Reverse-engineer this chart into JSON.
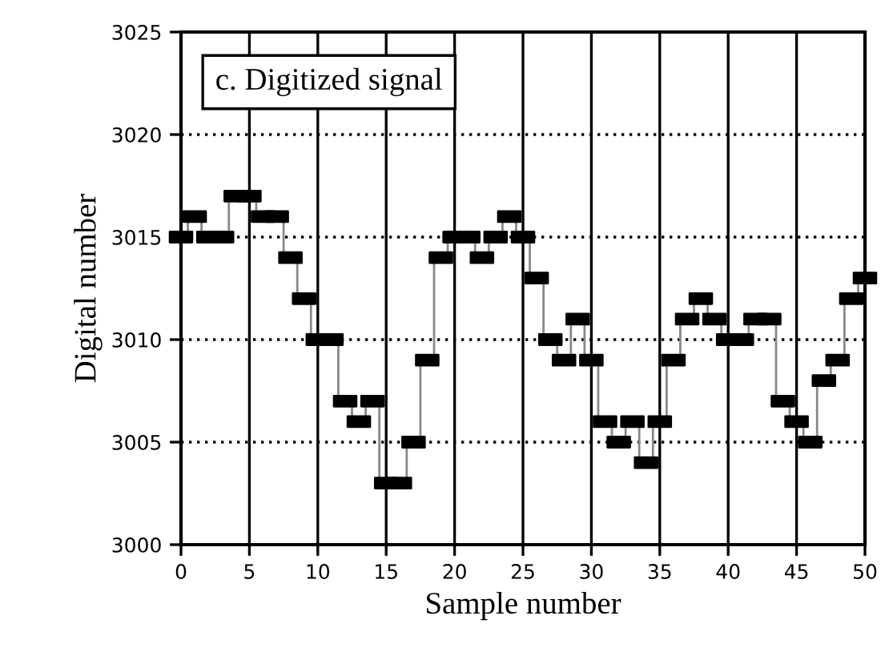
{
  "chart_data": {
    "type": "step",
    "title": "c. Digitized signal",
    "xlabel": "Sample number",
    "ylabel": "Digital number",
    "x": [
      0,
      1,
      2,
      3,
      4,
      5,
      6,
      7,
      8,
      9,
      10,
      11,
      12,
      13,
      14,
      15,
      16,
      17,
      18,
      19,
      20,
      21,
      22,
      23,
      24,
      25,
      26,
      27,
      28,
      29,
      30,
      31,
      32,
      33,
      34,
      35,
      36,
      37,
      38,
      39,
      40,
      41,
      42,
      43,
      44,
      45,
      46,
      47,
      48,
      49,
      50
    ],
    "series": [
      {
        "color": "#000000",
        "values": [
          3015,
          3016,
          3015,
          3015,
          3017,
          3017,
          3016,
          3016,
          3014,
          3012,
          3010,
          3010,
          3007,
          3006,
          3007,
          3003,
          3003,
          3005,
          3009,
          3014,
          3015,
          3015,
          3014,
          3015,
          3016,
          3015,
          3013,
          3010,
          3009,
          3011,
          3009,
          3006,
          3005,
          3006,
          3004,
          3006,
          3009,
          3011,
          3012,
          3011,
          3010,
          3010,
          3011,
          3011,
          3007,
          3006,
          3005,
          3008,
          3009,
          3012,
          3013
        ]
      }
    ],
    "xlim": [
      0,
      50
    ],
    "ylim": [
      3000,
      3025
    ],
    "xticks": [
      0,
      5,
      10,
      15,
      20,
      25,
      30,
      35,
      40,
      45,
      50
    ],
    "yticks": [
      3000,
      3005,
      3010,
      3015,
      3020,
      3025
    ],
    "grid": true,
    "marker": "square"
  }
}
